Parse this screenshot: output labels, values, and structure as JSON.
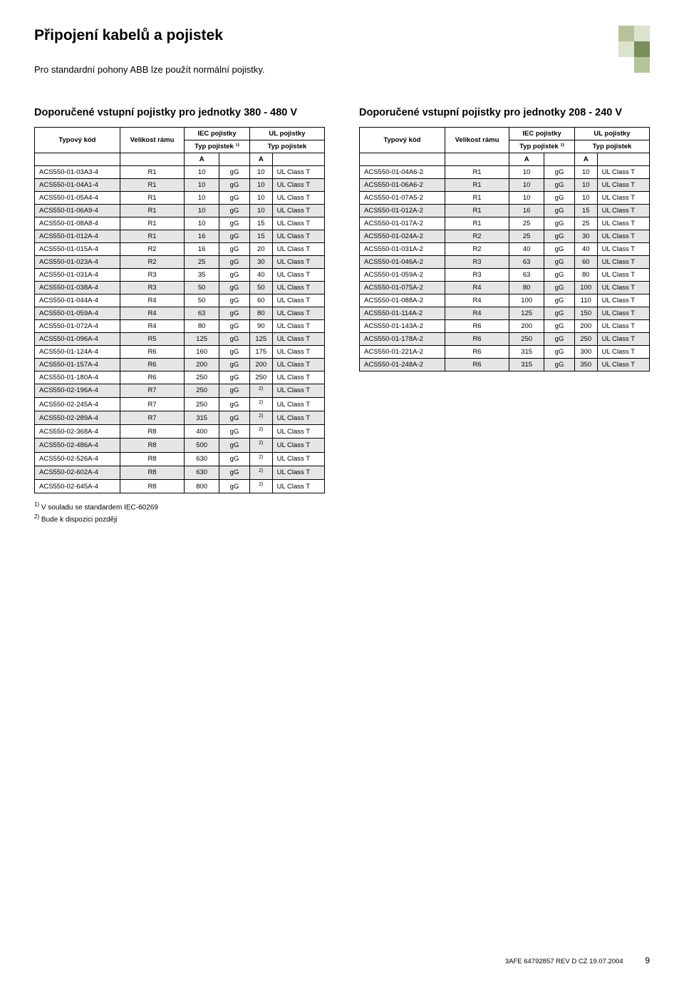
{
  "colors": {
    "deco_dark": "#7a8f5a",
    "deco_mid": "#b6c39a",
    "deco_light": "#dce3cc",
    "row_shade": "#e6e6e6",
    "text": "#000000",
    "background": "#ffffff"
  },
  "page_title": "Připojení kabelů a pojistek",
  "intro": "Pro standardní pohony ABB lze použít normální pojistky.",
  "headers": {
    "typovy_kod": "Typový kód",
    "velikost_ramu": "Velikost rámu",
    "iec_pojistky": "IEC pojistky",
    "ul_pojistky": "UL pojistky",
    "typ_pojistek_1": "Typ pojistek ¹⁾",
    "typ_pojistek": "Typ pojistek",
    "unit": "A"
  },
  "left": {
    "title": "Doporučené vstupní pojistky pro jednotky 380 - 480 V",
    "rows": [
      {
        "code": "ACS550-01-03A3-4",
        "frame": "R1",
        "iec_a": "10",
        "iec_t": "gG",
        "ul_a": "10",
        "ul_t": "UL Class T"
      },
      {
        "code": "ACS550-01-04A1-4",
        "frame": "R1",
        "iec_a": "10",
        "iec_t": "gG",
        "ul_a": "10",
        "ul_t": "UL Class T"
      },
      {
        "code": "ACS550-01-05A4-4",
        "frame": "R1",
        "iec_a": "10",
        "iec_t": "gG",
        "ul_a": "10",
        "ul_t": "UL Class T"
      },
      {
        "code": "ACS550-01-06A9-4",
        "frame": "R1",
        "iec_a": "10",
        "iec_t": "gG",
        "ul_a": "10",
        "ul_t": "UL Class T"
      },
      {
        "code": "ACS550-01-08A8-4",
        "frame": "R1",
        "iec_a": "10",
        "iec_t": "gG",
        "ul_a": "15",
        "ul_t": "UL Class T"
      },
      {
        "code": "ACS550-01-012A-4",
        "frame": "R1",
        "iec_a": "16",
        "iec_t": "gG",
        "ul_a": "15",
        "ul_t": "UL Class T"
      },
      {
        "code": "ACS550-01-015A-4",
        "frame": "R2",
        "iec_a": "16",
        "iec_t": "gG",
        "ul_a": "20",
        "ul_t": "UL Class T"
      },
      {
        "code": "ACS550-01-023A-4",
        "frame": "R2",
        "iec_a": "25",
        "iec_t": "gG",
        "ul_a": "30",
        "ul_t": "UL Class T"
      },
      {
        "code": "ACS550-01-031A-4",
        "frame": "R3",
        "iec_a": "35",
        "iec_t": "gG",
        "ul_a": "40",
        "ul_t": "UL Class T"
      },
      {
        "code": "ACS550-01-038A-4",
        "frame": "R3",
        "iec_a": "50",
        "iec_t": "gG",
        "ul_a": "50",
        "ul_t": "UL Class T"
      },
      {
        "code": "ACS550-01-044A-4",
        "frame": "R4",
        "iec_a": "50",
        "iec_t": "gG",
        "ul_a": "60",
        "ul_t": "UL Class T"
      },
      {
        "code": "ACS550-01-059A-4",
        "frame": "R4",
        "iec_a": "63",
        "iec_t": "gG",
        "ul_a": "80",
        "ul_t": "UL Class T"
      },
      {
        "code": "ACS550-01-072A-4",
        "frame": "R4",
        "iec_a": "80",
        "iec_t": "gG",
        "ul_a": "90",
        "ul_t": "UL Class T"
      },
      {
        "code": "ACS550-01-096A-4",
        "frame": "R5",
        "iec_a": "125",
        "iec_t": "gG",
        "ul_a": "125",
        "ul_t": "UL Class T"
      },
      {
        "code": "ACS550-01-124A-4",
        "frame": "R6",
        "iec_a": "160",
        "iec_t": "gG",
        "ul_a": "175",
        "ul_t": "UL Class T"
      },
      {
        "code": "ACS550-01-157A-4",
        "frame": "R6",
        "iec_a": "200",
        "iec_t": "gG",
        "ul_a": "200",
        "ul_t": "UL Class T"
      },
      {
        "code": "ACS550-01-180A-4",
        "frame": "R6",
        "iec_a": "250",
        "iec_t": "gG",
        "ul_a": "250",
        "ul_t": "UL Class T"
      },
      {
        "code": "ACS550-02-196A-4",
        "frame": "R7",
        "iec_a": "250",
        "iec_t": "gG",
        "ul_a": "2)",
        "ul_t": "UL Class T"
      },
      {
        "code": "ACS550-02-245A-4",
        "frame": "R7",
        "iec_a": "250",
        "iec_t": "gG",
        "ul_a": "2)",
        "ul_t": "UL Class T"
      },
      {
        "code": "ACS550-02-289A-4",
        "frame": "R7",
        "iec_a": "315",
        "iec_t": "gG",
        "ul_a": "2)",
        "ul_t": "UL Class T"
      },
      {
        "code": "ACS550-02-368A-4",
        "frame": "R8",
        "iec_a": "400",
        "iec_t": "gG",
        "ul_a": "2)",
        "ul_t": "UL Class T"
      },
      {
        "code": "ACS550-02-486A-4",
        "frame": "R8",
        "iec_a": "500",
        "iec_t": "gG",
        "ul_a": "2)",
        "ul_t": "UL Class T"
      },
      {
        "code": "ACS550-02-526A-4",
        "frame": "R8",
        "iec_a": "630",
        "iec_t": "gG",
        "ul_a": "2)",
        "ul_t": "UL Class T"
      },
      {
        "code": "ACS550-02-602A-4",
        "frame": "R8",
        "iec_a": "630",
        "iec_t": "gG",
        "ul_a": "2)",
        "ul_t": "UL Class T"
      },
      {
        "code": "ACS550-02-645A-4",
        "frame": "R8",
        "iec_a": "800",
        "iec_t": "gG",
        "ul_a": "2)",
        "ul_t": "UL Class T"
      }
    ]
  },
  "right": {
    "title": "Doporučené vstupní pojistky pro jednotky 208 - 240 V",
    "rows": [
      {
        "code": "ACS550-01-04A6-2",
        "frame": "R1",
        "iec_a": "10",
        "iec_t": "gG",
        "ul_a": "10",
        "ul_t": "UL Class T"
      },
      {
        "code": "ACS550-01-06A6-2",
        "frame": "R1",
        "iec_a": "10",
        "iec_t": "gG",
        "ul_a": "10",
        "ul_t": "UL Class T"
      },
      {
        "code": "ACS550-01-07A5-2",
        "frame": "R1",
        "iec_a": "10",
        "iec_t": "gG",
        "ul_a": "10",
        "ul_t": "UL Class T"
      },
      {
        "code": "ACS550-01-012A-2",
        "frame": "R1",
        "iec_a": "16",
        "iec_t": "gG",
        "ul_a": "15",
        "ul_t": "UL Class T"
      },
      {
        "code": "ACS550-01-017A-2",
        "frame": "R1",
        "iec_a": "25",
        "iec_t": "gG",
        "ul_a": "25",
        "ul_t": "UL Class T"
      },
      {
        "code": "ACS550-01-024A-2",
        "frame": "R2",
        "iec_a": "25",
        "iec_t": "gG",
        "ul_a": "30",
        "ul_t": "UL Class T"
      },
      {
        "code": "ACS550-01-031A-2",
        "frame": "R2",
        "iec_a": "40",
        "iec_t": "gG",
        "ul_a": "40",
        "ul_t": "UL Class T"
      },
      {
        "code": "ACS550-01-046A-2",
        "frame": "R3",
        "iec_a": "63",
        "iec_t": "gG",
        "ul_a": "60",
        "ul_t": "UL Class T"
      },
      {
        "code": "ACS550-01-059A-2",
        "frame": "R3",
        "iec_a": "63",
        "iec_t": "gG",
        "ul_a": "80",
        "ul_t": "UL Class T"
      },
      {
        "code": "ACS550-01-075A-2",
        "frame": "R4",
        "iec_a": "80",
        "iec_t": "gG",
        "ul_a": "100",
        "ul_t": "UL Class T"
      },
      {
        "code": "ACS550-01-088A-2",
        "frame": "R4",
        "iec_a": "100",
        "iec_t": "gG",
        "ul_a": "110",
        "ul_t": "UL Class T"
      },
      {
        "code": "ACS550-01-114A-2",
        "frame": "R4",
        "iec_a": "125",
        "iec_t": "gG",
        "ul_a": "150",
        "ul_t": "UL Class T"
      },
      {
        "code": "ACS550-01-143A-2",
        "frame": "R6",
        "iec_a": "200",
        "iec_t": "gG",
        "ul_a": "200",
        "ul_t": "UL Class T"
      },
      {
        "code": "ACS550-01-178A-2",
        "frame": "R6",
        "iec_a": "250",
        "iec_t": "gG",
        "ul_a": "250",
        "ul_t": "UL Class T"
      },
      {
        "code": "ACS550-01-221A-2",
        "frame": "R6",
        "iec_a": "315",
        "iec_t": "gG",
        "ul_a": "300",
        "ul_t": "UL Class T"
      },
      {
        "code": "ACS550-01-248A-2",
        "frame": "R6",
        "iec_a": "315",
        "iec_t": "gG",
        "ul_a": "350",
        "ul_t": "UL Class T"
      }
    ]
  },
  "footnotes": {
    "fn1": "V souladu se standardem IEC-60269",
    "fn2": "Bude k dispozici později"
  },
  "footer": {
    "doc_ref": "3AFE 64792857 REV D CZ 19.07.2004",
    "page_number": "9"
  }
}
